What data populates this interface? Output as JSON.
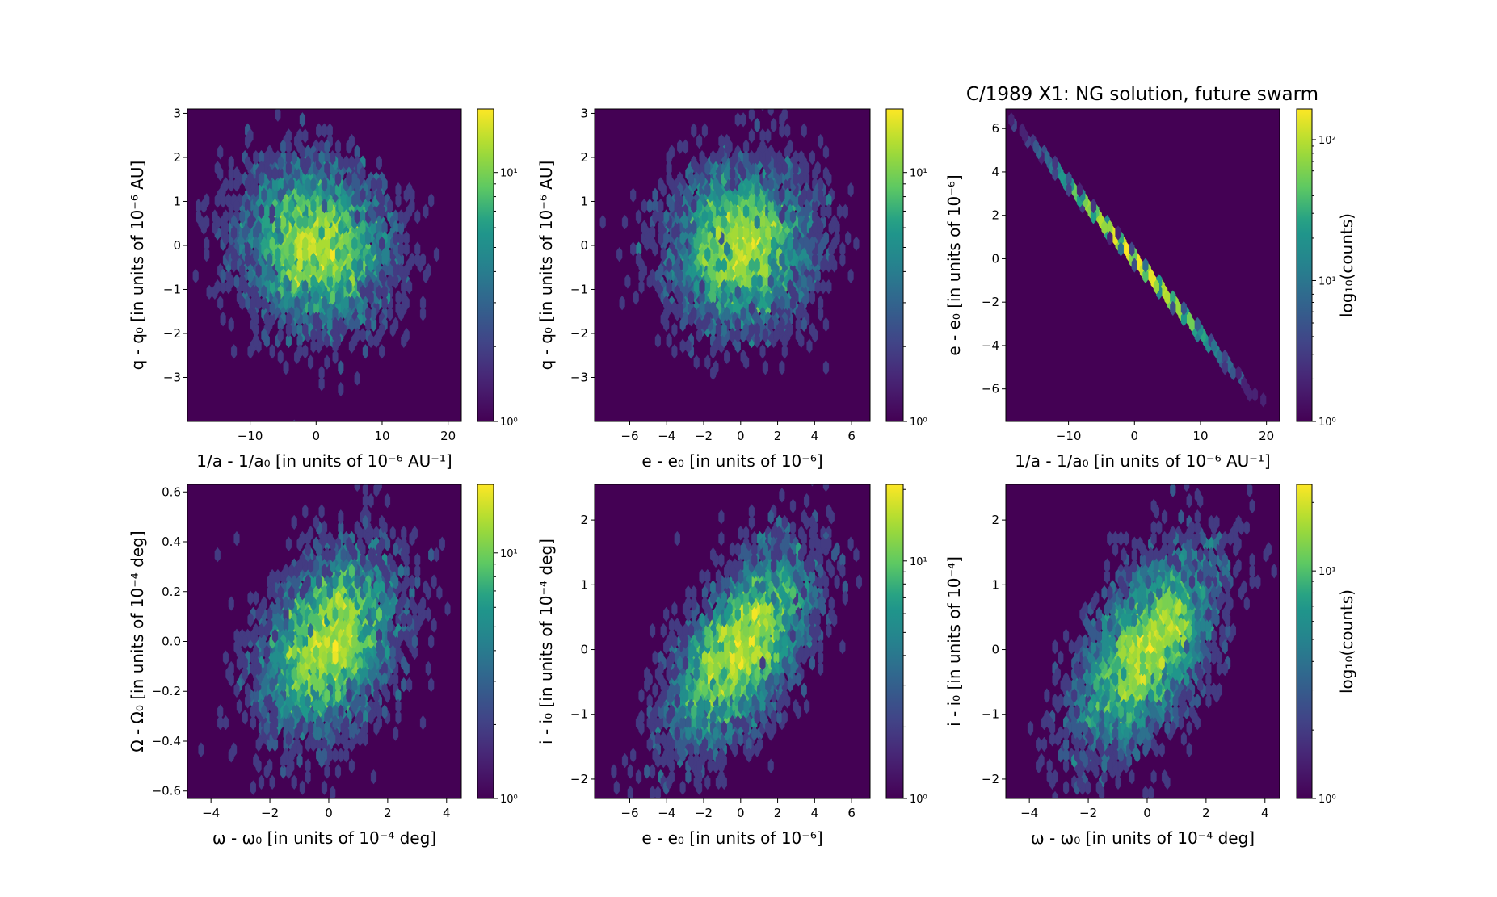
{
  "chart_data": {
    "type": "heatmap",
    "subtype": "hexbin",
    "title": "C/1989 X1:  NG solution, future swarm",
    "colormap": "viridis",
    "colorbar_label": "log₁₀(counts)",
    "panels": [
      {
        "xlabel": "1/a - 1/a₀ [in units of 10⁻⁶ AU⁻¹]",
        "ylabel": "q - q₀ [in units of 10⁻⁶ AU]",
        "xlim": [
          -19.5,
          22
        ],
        "ylim": [
          -4.0,
          3.1
        ],
        "xticks": [
          -10,
          0,
          10,
          20
        ],
        "xtick_labels": [
          "−10",
          "0",
          "10",
          "20"
        ],
        "yticks": [
          -3,
          -2,
          -1,
          0,
          1,
          2,
          3
        ],
        "ytick_labels": [
          "−3",
          "−2",
          "−1",
          "0",
          "1",
          "2",
          "3"
        ],
        "samples": 5000,
        "mean": [
          0,
          0
        ],
        "sd": [
          5.5,
          0.9
        ],
        "corr": -0.12,
        "colorbar": {
          "range": [
            1,
            18
          ],
          "tick_labels": [
            "10⁰",
            "10¹"
          ],
          "label": ""
        }
      },
      {
        "xlabel": "e - e₀ [in units of 10⁻⁶]",
        "ylabel": "q - q₀ [in units of 10⁻⁶ AU]",
        "xlim": [
          -7.9,
          7.0
        ],
        "ylim": [
          -4.0,
          3.1
        ],
        "xticks": [
          -6,
          -4,
          -2,
          0,
          2,
          4,
          6
        ],
        "xtick_labels": [
          "−6",
          "−4",
          "−2",
          "0",
          "2",
          "4",
          "6"
        ],
        "yticks": [
          -3,
          -2,
          -1,
          0,
          1,
          2,
          3
        ],
        "ytick_labels": [
          "−3",
          "−2",
          "−1",
          "0",
          "1",
          "2",
          "3"
        ],
        "samples": 5000,
        "mean": [
          0,
          0
        ],
        "sd": [
          1.9,
          0.9
        ],
        "corr": 0.05,
        "colorbar": {
          "range": [
            1,
            18
          ],
          "tick_labels": [
            "10⁰",
            "10¹"
          ],
          "label": ""
        }
      },
      {
        "xlabel": "1/a - 1/a₀ [in units of 10⁻⁶ AU⁻¹]",
        "ylabel": "e - e₀ [in units of 10⁻⁶]",
        "xlim": [
          -19.5,
          22
        ],
        "ylim": [
          -7.5,
          6.9
        ],
        "xticks": [
          -10,
          0,
          10,
          20
        ],
        "xtick_labels": [
          "−10",
          "0",
          "10",
          "20"
        ],
        "yticks": [
          -6,
          -4,
          -2,
          0,
          2,
          4,
          6
        ],
        "ytick_labels": [
          "−6",
          "−4",
          "−2",
          "0",
          "2",
          "4",
          "6"
        ],
        "samples": 5000,
        "mean": [
          0,
          0
        ],
        "sd": [
          5.5,
          0.04
        ],
        "linear_slope": -0.345,
        "colorbar": {
          "range": [
            1,
            165
          ],
          "tick_labels": [
            "10⁰",
            "10¹",
            "10²"
          ],
          "label": "log₁₀(counts)"
        }
      },
      {
        "xlabel": "ω - ω₀ [in units of 10⁻⁴ deg]",
        "ylabel": "Ω - Ω₀ [in units of 10⁻⁴ deg]",
        "xlim": [
          -4.8,
          4.5
        ],
        "ylim": [
          -0.63,
          0.63
        ],
        "xticks": [
          -4,
          -2,
          0,
          2,
          4
        ],
        "xtick_labels": [
          "−4",
          "−2",
          "0",
          "2",
          "4"
        ],
        "yticks": [
          -0.6,
          -0.4,
          -0.2,
          0,
          0.2,
          0.4,
          0.6
        ],
        "ytick_labels": [
          "−0.6",
          "−0.4",
          "−0.2",
          "0.0",
          "0.2",
          "0.4",
          "0.6"
        ],
        "samples": 5000,
        "mean": [
          0,
          0
        ],
        "sd": [
          1.15,
          0.18
        ],
        "corr": 0.35,
        "colorbar": {
          "range": [
            1,
            19
          ],
          "tick_labels": [
            "10⁰",
            "10¹"
          ],
          "label": ""
        }
      },
      {
        "xlabel": "e - e₀ [in units of 10⁻⁶]",
        "ylabel": "i - i₀ [in units of 10⁻⁴ deg]",
        "xlim": [
          -7.9,
          7.0
        ],
        "ylim": [
          -2.3,
          2.55
        ],
        "xticks": [
          -6,
          -4,
          -2,
          0,
          2,
          4,
          6
        ],
        "xtick_labels": [
          "−6",
          "−4",
          "−2",
          "0",
          "2",
          "4",
          "6"
        ],
        "yticks": [
          -2,
          -1,
          0,
          1,
          2
        ],
        "ytick_labels": [
          "−2",
          "−1",
          "0",
          "1",
          "2"
        ],
        "samples": 5000,
        "mean": [
          0,
          0
        ],
        "sd": [
          1.9,
          0.75
        ],
        "corr": 0.6,
        "colorbar": {
          "range": [
            1,
            21
          ],
          "tick_labels": [
            "10⁰",
            "10¹"
          ],
          "label": ""
        }
      },
      {
        "xlabel": "ω - ω₀ [in units of 10⁻⁴ deg]",
        "ylabel": "i - i₀ [in units of 10⁻⁴]",
        "xlim": [
          -4.8,
          4.5
        ],
        "ylim": [
          -2.3,
          2.55
        ],
        "xticks": [
          -4,
          -2,
          0,
          2,
          4
        ],
        "xtick_labels": [
          "−4",
          "−2",
          "0",
          "2",
          "4"
        ],
        "yticks": [
          -2,
          -1,
          0,
          1,
          2
        ],
        "ytick_labels": [
          "−2",
          "−1",
          "0",
          "1",
          "2"
        ],
        "samples": 5000,
        "mean": [
          0,
          0
        ],
        "sd": [
          1.15,
          0.75
        ],
        "corr": 0.55,
        "colorbar": {
          "range": [
            1,
            24
          ],
          "tick_labels": [
            "10⁰",
            "10¹"
          ],
          "label": "log₁₀(counts)"
        }
      }
    ]
  }
}
